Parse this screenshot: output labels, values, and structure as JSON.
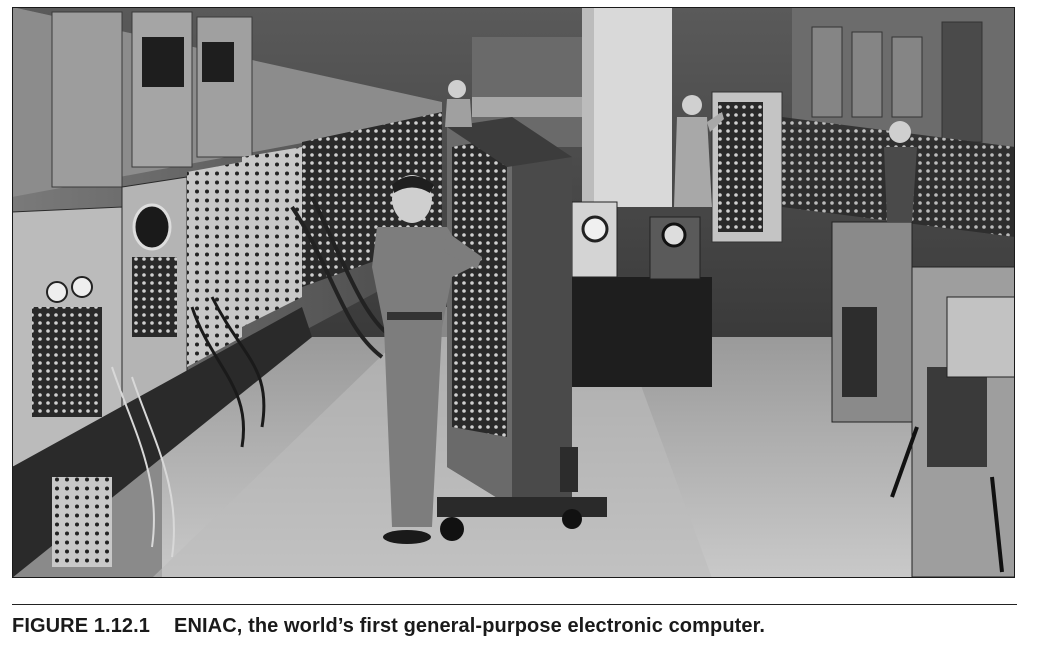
{
  "figure": {
    "label": "FIGURE 1.12.1",
    "caption": "ENIAC, the world’s first general-purpose electronic computer."
  },
  "colors": {
    "caption_text": "#1a1a1a",
    "rule": "#222222",
    "background": "#ffffff"
  }
}
